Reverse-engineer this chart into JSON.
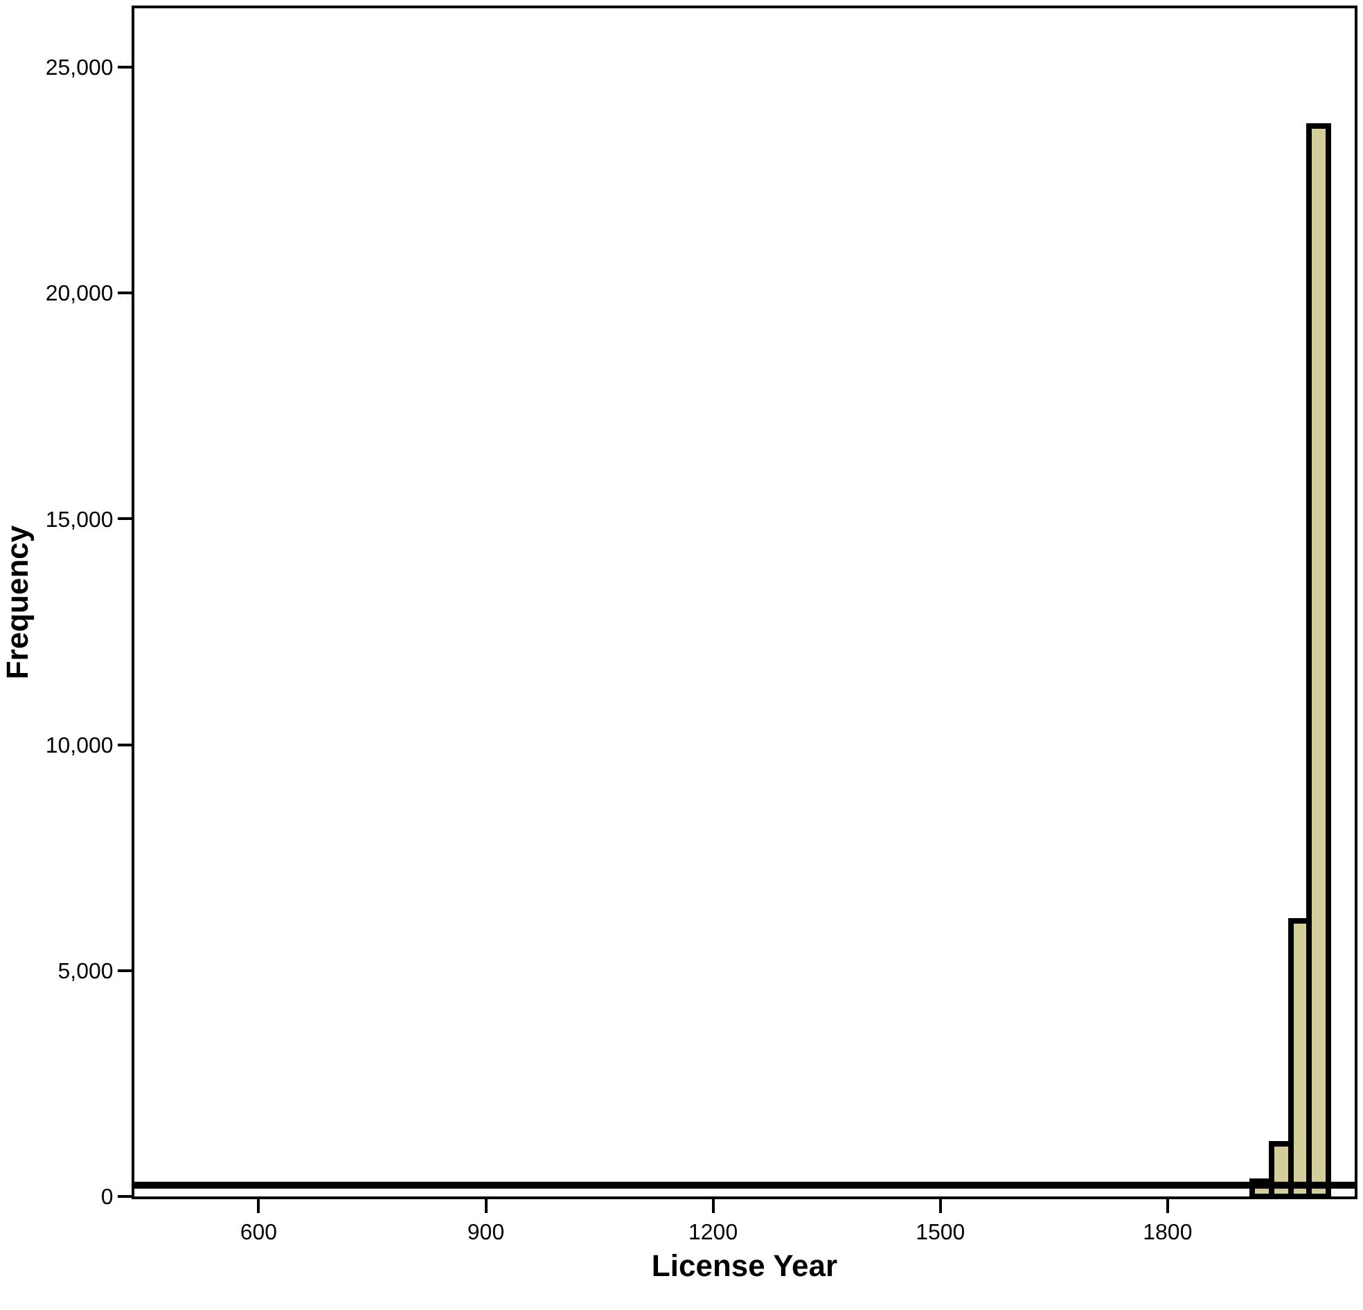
{
  "chart_data": {
    "type": "histogram",
    "xlabel": "License Year",
    "ylabel": "Frequency",
    "bins": [
      1912,
      1937,
      1962,
      1987,
      2012
    ],
    "values": [
      350,
      1150,
      6100,
      23700
    ],
    "color": "#d3ce9a",
    "xlim": [
      436,
      2047
    ],
    "xticks": [
      600,
      900,
      1200,
      1500,
      1800
    ],
    "ylim": [
      0,
      26300
    ],
    "yticks": [
      0,
      {
        "value": 5000,
        "label": "5,000"
      },
      {
        "value": 10000,
        "label": "10,000"
      },
      {
        "value": 15000,
        "label": "15,000"
      },
      {
        "value": 20000,
        "label": "20,000"
      },
      {
        "value": 25000,
        "label": "25,000"
      }
    ],
    "ref_lines": [
      {
        "axis": "y",
        "value": 250,
        "color": "#000000"
      }
    ]
  }
}
